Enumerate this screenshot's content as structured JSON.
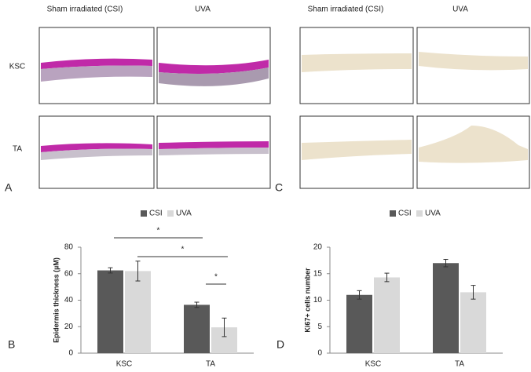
{
  "images": {
    "panels": [
      "A",
      "C"
    ],
    "columns": [
      "Sham irradiated (CSI)",
      "UVA",
      "Sham irradiated (CSI)",
      "UVA"
    ],
    "rows": [
      "KSC",
      "TA"
    ]
  },
  "chart_data": [
    {
      "type": "bar",
      "panel": "B",
      "ylabel": "Epidermis thickness (µM)",
      "categories": [
        "KSC",
        "TA"
      ],
      "series": [
        {
          "name": "CSI",
          "color": "#595959",
          "values": [
            62.5,
            36.5
          ],
          "errors": [
            2,
            2
          ]
        },
        {
          "name": "UVA",
          "color": "#d9d9d9",
          "values": [
            62,
            19.5
          ],
          "errors": [
            7.5,
            7
          ]
        }
      ],
      "ylim": [
        0,
        80
      ],
      "yticks": [
        0,
        20,
        40,
        60,
        80
      ],
      "significance": [
        "*",
        "*",
        "*"
      ]
    },
    {
      "type": "bar",
      "panel": "D",
      "ylabel": "Ki67+ cells number",
      "categories": [
        "KSC",
        "TA"
      ],
      "series": [
        {
          "name": "CSI",
          "color": "#595959",
          "values": [
            11,
            17
          ],
          "errors": [
            0.8,
            0.7
          ]
        },
        {
          "name": "UVA",
          "color": "#d9d9d9",
          "values": [
            14.3,
            11.5
          ],
          "errors": [
            0.8,
            1.3
          ]
        }
      ],
      "ylim": [
        0,
        20
      ],
      "yticks": [
        0,
        5,
        10,
        15,
        20
      ]
    }
  ]
}
